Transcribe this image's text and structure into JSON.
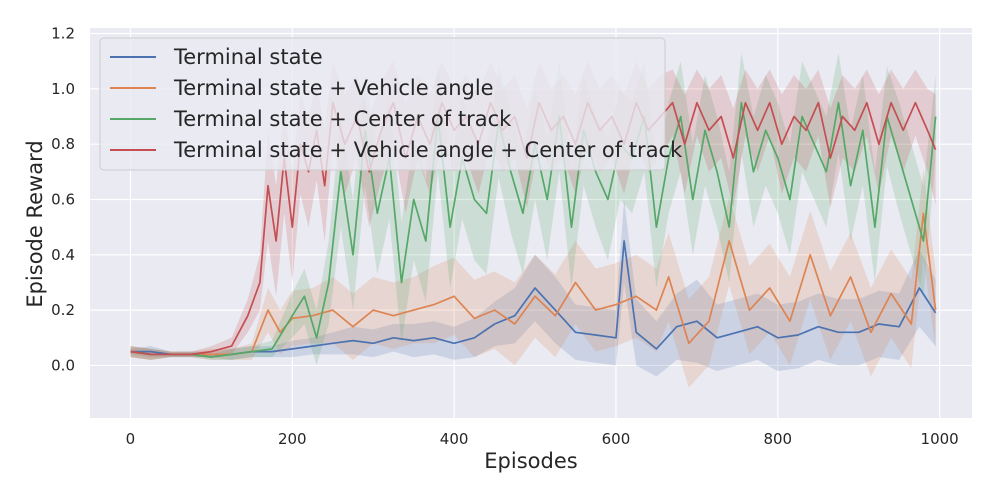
{
  "chart_data": {
    "type": "line",
    "xlabel": "Episodes",
    "ylabel": "Episode Reward",
    "xlim": [
      -50,
      1040
    ],
    "ylim": [
      -0.19,
      1.22
    ],
    "xticks": [
      "0",
      "200",
      "400",
      "600",
      "800",
      "1000"
    ],
    "yticks": [
      "0.0",
      "0.2",
      "0.4",
      "0.6",
      "0.8",
      "1.0",
      "1.2"
    ],
    "grid": true,
    "legend_position": "top-left",
    "series": [
      {
        "name": "Terminal state",
        "color": "#4c72b0",
        "x": [
          0,
          25,
          50,
          75,
          100,
          125,
          150,
          175,
          200,
          225,
          250,
          275,
          300,
          325,
          350,
          375,
          400,
          425,
          450,
          475,
          500,
          525,
          550,
          575,
          600,
          610,
          625,
          650,
          675,
          700,
          725,
          750,
          775,
          800,
          825,
          850,
          875,
          900,
          925,
          950,
          975,
          995
        ],
        "y": [
          0.05,
          0.05,
          0.04,
          0.04,
          0.04,
          0.04,
          0.05,
          0.05,
          0.06,
          0.07,
          0.08,
          0.09,
          0.08,
          0.1,
          0.09,
          0.1,
          0.08,
          0.1,
          0.15,
          0.18,
          0.28,
          0.2,
          0.12,
          0.11,
          0.1,
          0.45,
          0.12,
          0.06,
          0.14,
          0.16,
          0.1,
          0.12,
          0.14,
          0.1,
          0.11,
          0.14,
          0.12,
          0.12,
          0.15,
          0.14,
          0.28,
          0.19
        ],
        "band": [
          0.01,
          0.02,
          0.01,
          0.01,
          0.01,
          0.02,
          0.02,
          0.02,
          0.03,
          0.03,
          0.04,
          0.05,
          0.05,
          0.05,
          0.06,
          0.06,
          0.06,
          0.07,
          0.08,
          0.1,
          0.12,
          0.12,
          0.1,
          0.1,
          0.1,
          0.15,
          0.12,
          0.1,
          0.12,
          0.15,
          0.12,
          0.12,
          0.12,
          0.12,
          0.12,
          0.12,
          0.12,
          0.12,
          0.12,
          0.12,
          0.14,
          0.12
        ]
      },
      {
        "name": "Terminal state + Vehicle angle",
        "color": "#dd8452",
        "x": [
          0,
          25,
          50,
          75,
          100,
          125,
          150,
          170,
          185,
          200,
          225,
          250,
          275,
          300,
          325,
          350,
          375,
          400,
          425,
          450,
          475,
          500,
          525,
          550,
          575,
          600,
          625,
          650,
          665,
          690,
          715,
          740,
          765,
          790,
          815,
          840,
          865,
          890,
          915,
          940,
          965,
          980,
          995
        ],
        "y": [
          0.05,
          0.04,
          0.04,
          0.04,
          0.04,
          0.04,
          0.05,
          0.2,
          0.12,
          0.17,
          0.18,
          0.2,
          0.14,
          0.2,
          0.18,
          0.2,
          0.22,
          0.25,
          0.17,
          0.2,
          0.15,
          0.25,
          0.18,
          0.3,
          0.2,
          0.22,
          0.25,
          0.2,
          0.32,
          0.08,
          0.16,
          0.45,
          0.2,
          0.28,
          0.16,
          0.4,
          0.18,
          0.32,
          0.12,
          0.26,
          0.15,
          0.55,
          0.2
        ],
        "band": [
          0.02,
          0.02,
          0.01,
          0.01,
          0.02,
          0.02,
          0.03,
          0.08,
          0.08,
          0.1,
          0.1,
          0.12,
          0.12,
          0.12,
          0.12,
          0.12,
          0.14,
          0.14,
          0.14,
          0.14,
          0.15,
          0.15,
          0.15,
          0.15,
          0.15,
          0.15,
          0.15,
          0.15,
          0.16,
          0.16,
          0.16,
          0.16,
          0.16,
          0.16,
          0.16,
          0.16,
          0.16,
          0.16,
          0.16,
          0.16,
          0.16,
          0.16,
          0.14
        ]
      },
      {
        "name": "Terminal state + Center of track",
        "color": "#55a868",
        "x": [
          0,
          25,
          50,
          75,
          100,
          125,
          150,
          175,
          200,
          215,
          230,
          245,
          260,
          275,
          290,
          305,
          320,
          335,
          350,
          365,
          380,
          395,
          410,
          425,
          440,
          455,
          470,
          485,
          500,
          515,
          530,
          545,
          560,
          575,
          590,
          605,
          620,
          635,
          650,
          665,
          680,
          695,
          710,
          725,
          740,
          755,
          770,
          785,
          800,
          815,
          830,
          845,
          860,
          875,
          890,
          905,
          920,
          935,
          950,
          965,
          980,
          995
        ],
        "y": [
          0.05,
          0.04,
          0.04,
          0.04,
          0.03,
          0.04,
          0.05,
          0.06,
          0.18,
          0.25,
          0.1,
          0.3,
          0.7,
          0.4,
          0.85,
          0.55,
          0.75,
          0.3,
          0.6,
          0.45,
          0.9,
          0.5,
          0.75,
          0.6,
          0.55,
          0.88,
          0.7,
          0.55,
          0.8,
          0.6,
          0.9,
          0.5,
          0.85,
          0.7,
          0.6,
          0.8,
          0.75,
          0.9,
          0.5,
          0.75,
          0.9,
          0.6,
          0.85,
          0.7,
          0.5,
          0.95,
          0.7,
          0.85,
          0.75,
          0.6,
          0.9,
          0.8,
          0.7,
          0.95,
          0.65,
          0.85,
          0.5,
          0.9,
          0.75,
          0.6,
          0.45,
          0.9
        ],
        "band": [
          0.02,
          0.02,
          0.01,
          0.01,
          0.01,
          0.02,
          0.02,
          0.03,
          0.08,
          0.1,
          0.1,
          0.15,
          0.2,
          0.2,
          0.2,
          0.22,
          0.22,
          0.22,
          0.22,
          0.22,
          0.2,
          0.22,
          0.22,
          0.22,
          0.22,
          0.2,
          0.22,
          0.22,
          0.2,
          0.22,
          0.2,
          0.22,
          0.2,
          0.2,
          0.22,
          0.2,
          0.2,
          0.2,
          0.22,
          0.2,
          0.2,
          0.2,
          0.2,
          0.2,
          0.2,
          0.18,
          0.2,
          0.2,
          0.2,
          0.2,
          0.2,
          0.2,
          0.2,
          0.18,
          0.2,
          0.2,
          0.2,
          0.18,
          0.2,
          0.2,
          0.2,
          0.15
        ]
      },
      {
        "name": "Terminal state + Vehicle angle + Center of track",
        "color": "#c44e52",
        "x": [
          0,
          25,
          50,
          75,
          100,
          125,
          145,
          160,
          170,
          180,
          190,
          200,
          210,
          220,
          230,
          240,
          250,
          265,
          280,
          295,
          310,
          325,
          340,
          355,
          370,
          385,
          400,
          415,
          430,
          445,
          460,
          475,
          490,
          505,
          520,
          535,
          550,
          565,
          580,
          595,
          610,
          625,
          640,
          655,
          670,
          685,
          700,
          715,
          730,
          745,
          760,
          775,
          790,
          805,
          820,
          835,
          850,
          865,
          880,
          895,
          910,
          925,
          940,
          955,
          970,
          985,
          995
        ],
        "y": [
          0.05,
          0.04,
          0.04,
          0.04,
          0.05,
          0.07,
          0.18,
          0.3,
          0.65,
          0.45,
          0.75,
          0.5,
          0.8,
          0.7,
          0.85,
          0.65,
          0.95,
          0.8,
          0.9,
          0.7,
          0.85,
          0.95,
          0.75,
          0.9,
          0.8,
          0.95,
          0.85,
          0.9,
          0.8,
          0.95,
          0.85,
          0.9,
          0.75,
          0.95,
          0.85,
          0.9,
          0.8,
          0.95,
          0.85,
          0.9,
          0.8,
          0.95,
          0.85,
          0.9,
          0.95,
          0.8,
          0.95,
          0.85,
          0.9,
          0.75,
          0.95,
          0.85,
          0.95,
          0.8,
          0.9,
          0.85,
          0.95,
          0.75,
          0.9,
          0.85,
          0.95,
          0.8,
          0.95,
          0.85,
          0.95,
          0.85,
          0.78
        ],
        "band": [
          0.02,
          0.02,
          0.01,
          0.01,
          0.02,
          0.03,
          0.06,
          0.1,
          0.2,
          0.2,
          0.2,
          0.2,
          0.18,
          0.2,
          0.18,
          0.2,
          0.15,
          0.18,
          0.15,
          0.2,
          0.18,
          0.15,
          0.2,
          0.15,
          0.18,
          0.15,
          0.15,
          0.15,
          0.18,
          0.15,
          0.15,
          0.15,
          0.18,
          0.15,
          0.15,
          0.15,
          0.18,
          0.15,
          0.15,
          0.15,
          0.18,
          0.15,
          0.15,
          0.15,
          0.12,
          0.18,
          0.12,
          0.15,
          0.15,
          0.18,
          0.12,
          0.15,
          0.12,
          0.18,
          0.15,
          0.15,
          0.12,
          0.18,
          0.15,
          0.15,
          0.12,
          0.18,
          0.12,
          0.15,
          0.12,
          0.15,
          0.2
        ]
      }
    ]
  }
}
